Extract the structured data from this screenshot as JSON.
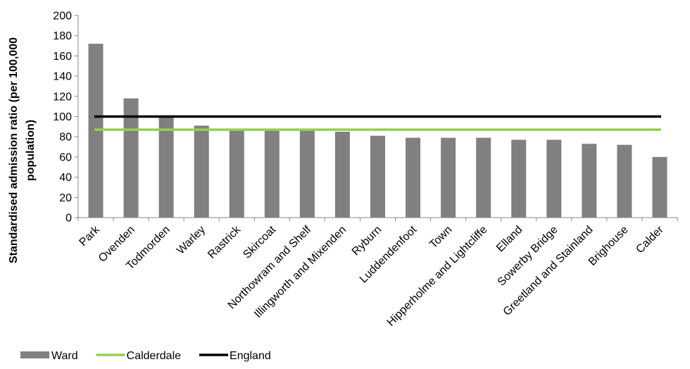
{
  "chart_data": {
    "type": "bar",
    "title": "",
    "xlabel": "",
    "ylabel": "Standardised admission ratio (per 100,000 population)",
    "ylabel_lines": [
      "Standardised admission ratio (per 100,000",
      "population)"
    ],
    "ylim": [
      0,
      200
    ],
    "yticks": [
      0,
      20,
      40,
      60,
      80,
      100,
      120,
      140,
      160,
      180,
      200
    ],
    "grid": false,
    "legend_position": "bottom-left",
    "categories": [
      "Park",
      "Ovenden",
      "Todmorden",
      "Warley",
      "Rastrick",
      "Skircoat",
      "Northowram and Shelf",
      "Illingworth and Mixenden",
      "Ryburn",
      "Luddendenfoot",
      "Town",
      "Hipperholme and Lightcliffe",
      "Elland",
      "Sowerby Bridge",
      "Greetland and Stainland",
      "Brighouse",
      "Calder"
    ],
    "series": [
      {
        "name": "Ward",
        "kind": "bar",
        "color": "#808080",
        "values": [
          172,
          118,
          100,
          91,
          87,
          87,
          86,
          85,
          81,
          79,
          79,
          79,
          77,
          77,
          73,
          72,
          60
        ]
      },
      {
        "name": "Calderdale",
        "kind": "line",
        "color": "#92D050",
        "value": 87
      },
      {
        "name": "England",
        "kind": "line",
        "color": "#000000",
        "value": 100
      }
    ]
  }
}
